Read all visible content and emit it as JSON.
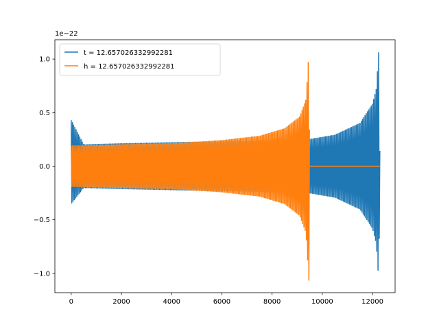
{
  "chart_data": {
    "type": "line",
    "title": "",
    "xlabel": "",
    "ylabel": "",
    "offset_text": "1e−22",
    "xlim": [
      -650,
      12900
    ],
    "ylim": [
      -1.18,
      1.18
    ],
    "x_ticks": [
      0,
      2000,
      4000,
      6000,
      8000,
      10000,
      12000
    ],
    "x_tick_labels": [
      "0",
      "2000",
      "4000",
      "6000",
      "8000",
      "10000",
      "12000"
    ],
    "y_ticks": [
      -1.0,
      -0.5,
      0.0,
      0.5,
      1.0
    ],
    "y_tick_labels": [
      "−1.0",
      "−0.5",
      "0.0",
      "0.5",
      "1.0"
    ],
    "grid": false,
    "legend_position": "top-left",
    "series": [
      {
        "name": "t = 12.657026332992281",
        "color": "#1f77b4",
        "envelope": {
          "x": [
            0,
            500,
            2000,
            4000,
            6000,
            8000,
            9500,
            10500,
            11500,
            12000,
            12150,
            12250,
            12300
          ],
          "upper": [
            0.43,
            0.2,
            0.21,
            0.22,
            0.23,
            0.24,
            0.25,
            0.29,
            0.4,
            0.58,
            0.72,
            1.08,
            0.0
          ],
          "lower": [
            -0.35,
            -0.2,
            -0.21,
            -0.22,
            -0.23,
            -0.24,
            -0.25,
            -0.29,
            -0.4,
            -0.58,
            -0.72,
            -1.08,
            0.0
          ]
        }
      },
      {
        "name": "h = 12.657026332992281",
        "color": "#ff7f0e",
        "envelope": {
          "x": [
            0,
            500,
            2000,
            4000,
            6000,
            7500,
            8500,
            9100,
            9350,
            9470,
            9500
          ],
          "upper": [
            0.19,
            0.19,
            0.2,
            0.21,
            0.24,
            0.28,
            0.35,
            0.46,
            0.62,
            1.08,
            0.0
          ],
          "lower": [
            -0.19,
            -0.19,
            -0.2,
            -0.21,
            -0.24,
            -0.28,
            -0.35,
            -0.46,
            -0.62,
            -1.08,
            0.0
          ]
        },
        "flat_after": {
          "x_start": 9500,
          "x_end": 12300,
          "value": 0.0
        }
      }
    ]
  }
}
